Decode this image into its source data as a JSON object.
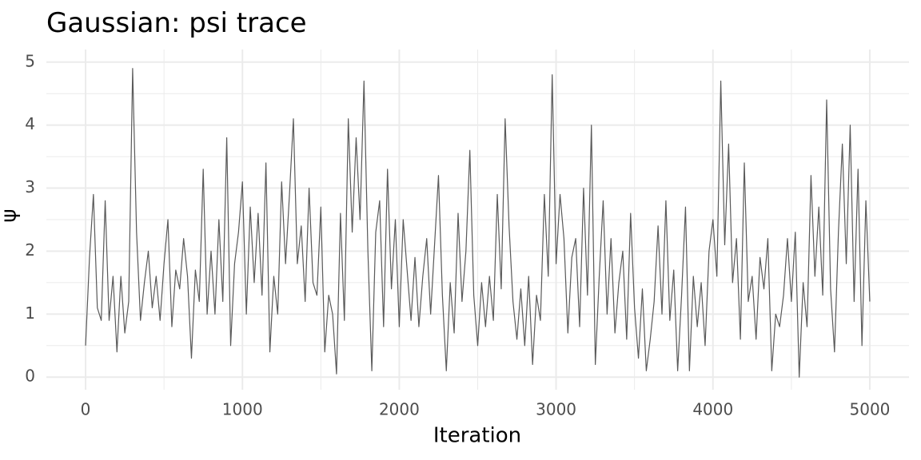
{
  "chart_data": {
    "type": "line",
    "title": "Gaussian: psi trace",
    "x_label": "Iteration",
    "y_label": "ψ",
    "x": [
      0,
      25,
      50,
      75,
      100,
      125,
      150,
      175,
      200,
      225,
      250,
      275,
      300,
      325,
      350,
      375,
      400,
      425,
      450,
      475,
      500,
      525,
      550,
      575,
      600,
      625,
      650,
      675,
      700,
      725,
      750,
      775,
      800,
      825,
      850,
      875,
      900,
      925,
      950,
      975,
      1000,
      1025,
      1050,
      1075,
      1100,
      1125,
      1150,
      1175,
      1200,
      1225,
      1250,
      1275,
      1300,
      1325,
      1350,
      1375,
      1400,
      1425,
      1450,
      1475,
      1500,
      1525,
      1550,
      1575,
      1600,
      1625,
      1650,
      1675,
      1700,
      1725,
      1750,
      1775,
      1800,
      1825,
      1850,
      1875,
      1900,
      1925,
      1950,
      1975,
      2000,
      2025,
      2050,
      2075,
      2100,
      2125,
      2150,
      2175,
      2200,
      2225,
      2250,
      2275,
      2300,
      2325,
      2350,
      2375,
      2400,
      2425,
      2450,
      2475,
      2500,
      2525,
      2550,
      2575,
      2600,
      2625,
      2650,
      2675,
      2700,
      2725,
      2750,
      2775,
      2800,
      2825,
      2850,
      2875,
      2900,
      2925,
      2950,
      2975,
      3000,
      3025,
      3050,
      3075,
      3100,
      3125,
      3150,
      3175,
      3200,
      3225,
      3250,
      3275,
      3300,
      3325,
      3350,
      3375,
      3400,
      3425,
      3450,
      3475,
      3500,
      3525,
      3550,
      3575,
      3600,
      3625,
      3650,
      3675,
      3700,
      3725,
      3750,
      3775,
      3800,
      3825,
      3850,
      3875,
      3900,
      3925,
      3950,
      3975,
      4000,
      4025,
      4050,
      4075,
      4100,
      4125,
      4150,
      4175,
      4200,
      4225,
      4250,
      4275,
      4300,
      4325,
      4350,
      4375,
      4400,
      4425,
      4450,
      4475,
      4500,
      4525,
      4550,
      4575,
      4600,
      4625,
      4650,
      4675,
      4700,
      4725,
      4750,
      4775,
      4800,
      4825,
      4850,
      4875,
      4900,
      4925,
      4950,
      4975,
      5000
    ],
    "values": [
      0.5,
      1.9,
      2.9,
      1.1,
      0.9,
      2.8,
      0.9,
      1.6,
      0.4,
      1.6,
      0.7,
      1.2,
      4.9,
      2.3,
      0.9,
      1.5,
      2.0,
      1.1,
      1.6,
      0.9,
      1.8,
      2.5,
      0.8,
      1.7,
      1.4,
      2.2,
      1.6,
      0.3,
      1.7,
      1.2,
      3.3,
      1.0,
      2.0,
      1.0,
      2.5,
      1.2,
      3.8,
      0.5,
      1.8,
      2.3,
      3.1,
      1.0,
      2.7,
      1.5,
      2.6,
      1.3,
      3.4,
      0.4,
      1.6,
      1.0,
      3.1,
      1.8,
      2.9,
      4.1,
      1.8,
      2.4,
      1.2,
      3.0,
      1.5,
      1.3,
      2.7,
      0.4,
      1.3,
      1.0,
      0.05,
      2.6,
      0.9,
      4.1,
      2.3,
      3.8,
      2.5,
      4.7,
      2.0,
      0.1,
      2.3,
      2.8,
      0.8,
      3.3,
      1.4,
      2.5,
      0.8,
      2.5,
      1.7,
      0.9,
      1.9,
      0.8,
      1.6,
      2.2,
      1.0,
      2.1,
      3.2,
      1.3,
      0.1,
      1.5,
      0.7,
      2.6,
      1.2,
      2.0,
      3.6,
      1.3,
      0.5,
      1.5,
      0.8,
      1.6,
      0.9,
      2.9,
      1.4,
      4.1,
      2.4,
      1.2,
      0.6,
      1.4,
      0.5,
      1.6,
      0.2,
      1.3,
      0.9,
      2.9,
      1.6,
      4.8,
      1.8,
      2.9,
      2.2,
      0.7,
      1.9,
      2.2,
      0.8,
      3.0,
      1.3,
      4.0,
      0.2,
      1.6,
      2.8,
      1.0,
      2.2,
      0.7,
      1.5,
      2.0,
      0.6,
      2.6,
      1.1,
      0.3,
      1.4,
      0.1,
      0.6,
      1.2,
      2.4,
      1.0,
      2.8,
      0.9,
      1.7,
      0.1,
      1.3,
      2.7,
      0.1,
      1.6,
      0.8,
      1.5,
      0.5,
      2.0,
      2.5,
      1.6,
      4.7,
      2.1,
      3.7,
      1.5,
      2.2,
      0.6,
      3.4,
      1.2,
      1.6,
      0.6,
      1.9,
      1.4,
      2.2,
      0.1,
      1.0,
      0.8,
      1.3,
      2.2,
      1.2,
      2.3,
      0.0,
      1.5,
      0.8,
      3.2,
      1.6,
      2.7,
      1.3,
      4.4,
      1.4,
      0.4,
      2.3,
      3.7,
      1.8,
      4.0,
      1.2,
      3.3,
      0.5,
      2.8,
      1.2
    ],
    "color": "#595959",
    "xlim": [
      -250,
      5250
    ],
    "ylim": [
      -0.2,
      5.2
    ],
    "xticks": [
      0,
      1000,
      2000,
      3000,
      4000,
      5000
    ],
    "yticks": [
      0,
      1,
      2,
      3,
      4,
      5
    ],
    "x_minor_ticks": [
      500,
      1500,
      2500,
      3500,
      4500
    ],
    "y_minor_ticks": [
      0.5,
      1.5,
      2.5,
      3.5,
      4.5
    ],
    "grid": true
  }
}
